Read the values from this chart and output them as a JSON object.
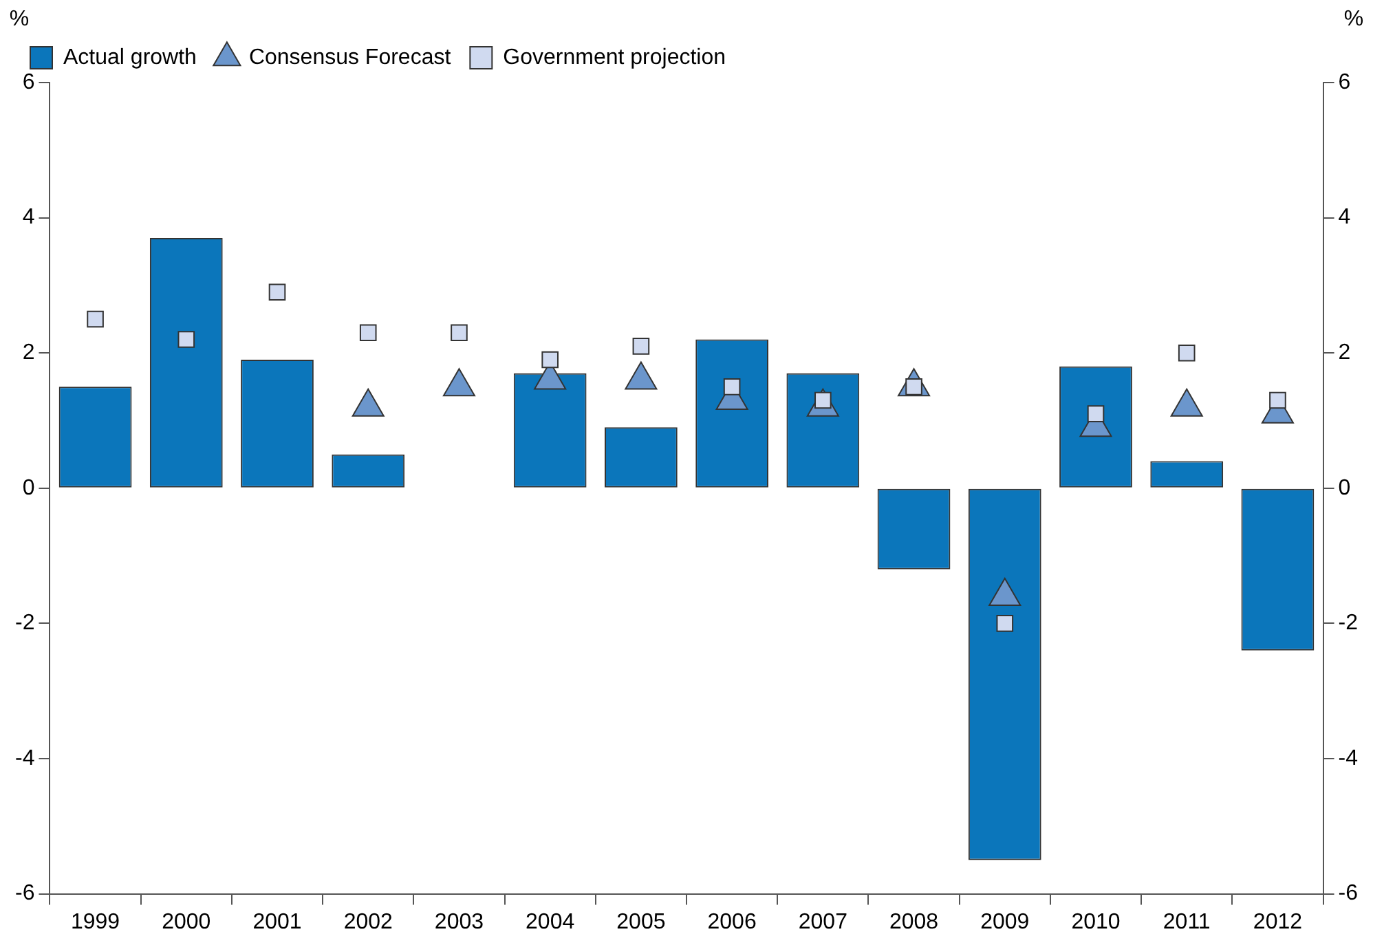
{
  "chart_data": {
    "type": "bar",
    "categories": [
      "1999",
      "2000",
      "2001",
      "2002",
      "2003",
      "2004",
      "2005",
      "2006",
      "2007",
      "2008",
      "2009",
      "2010",
      "2011",
      "2012"
    ],
    "ylabel": "%",
    "y2label": "%",
    "ylim": [
      -6,
      6
    ],
    "yticks": [
      -6,
      -4,
      -2,
      0,
      2,
      4,
      6
    ],
    "y2lim": [
      -6,
      6
    ],
    "y2ticks": [
      -6,
      -4,
      -2,
      0,
      2,
      4,
      6
    ],
    "grid": false,
    "legend": "top left",
    "series": [
      {
        "name": "Actual growth",
        "color": "#0b76bb",
        "values": [
          1.5,
          3.7,
          1.9,
          0.5,
          0,
          1.7,
          0.9,
          2.2,
          1.7,
          -1.2,
          -5.5,
          1.8,
          0.4,
          -2.4
        ]
      },
      {
        "name": "Consensus Forecast",
        "type": "scatter",
        "marker": "triangle",
        "color": "#6b96cc",
        "values": [
          null,
          null,
          null,
          1.2,
          1.5,
          1.6,
          1.6,
          1.3,
          1.2,
          1.5,
          -1.6,
          0.9,
          1.2,
          1.1
        ]
      },
      {
        "name": "Government projection",
        "type": "scatter",
        "marker": "square",
        "color": "#d0daf0",
        "values": [
          2.5,
          2.2,
          2.9,
          2.3,
          2.3,
          1.9,
          2.1,
          1.5,
          1.3,
          1.5,
          -2.0,
          1.1,
          2.0,
          1.3
        ]
      }
    ]
  }
}
